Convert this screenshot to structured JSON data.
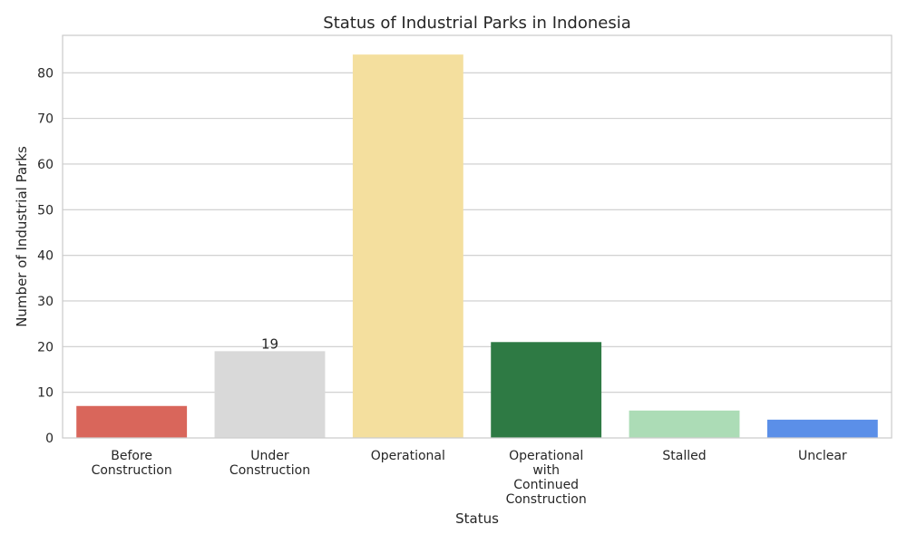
{
  "chart_data": {
    "type": "bar",
    "title": "Status of Industrial Parks in Indonesia",
    "xlabel": "Status",
    "ylabel": "Number of Industrial Parks",
    "categories": [
      [
        "Before",
        "Construction"
      ],
      [
        "Under",
        "Construction"
      ],
      [
        "Operational"
      ],
      [
        "Operational",
        "with",
        "Continued",
        "Construction"
      ],
      [
        "Stalled"
      ],
      [
        "Unclear"
      ]
    ],
    "values": [
      7,
      19,
      84,
      21,
      6,
      4
    ],
    "colors": [
      "#d9665b",
      "#d9d9d9",
      "#f4df9e",
      "#2e7a44",
      "#acdcb6",
      "#5b8fe8"
    ],
    "data_labels": [
      null,
      "19",
      null,
      null,
      null,
      null
    ],
    "yticks": [
      0,
      10,
      20,
      30,
      40,
      50,
      60,
      70,
      80
    ],
    "ylim": [
      0,
      88.2
    ],
    "grid": true,
    "legend": "none"
  }
}
